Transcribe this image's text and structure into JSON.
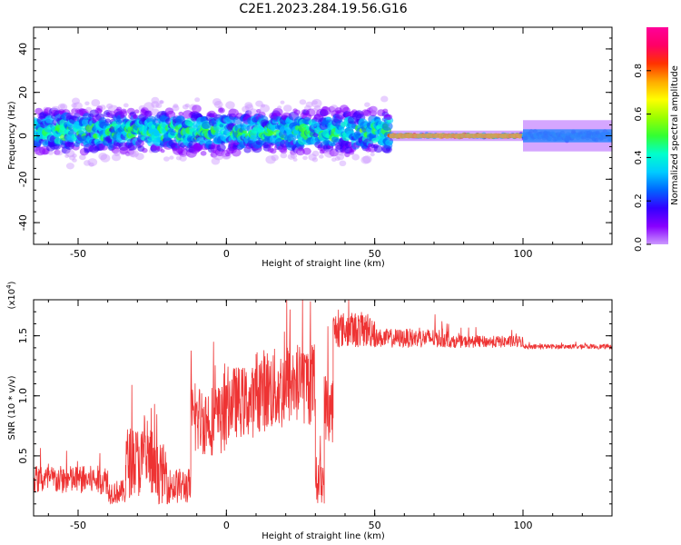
{
  "title": "C2E1.2023.284.19.56.G16",
  "chart_data": [
    {
      "type": "heatmap",
      "xlabel": "Height of straight line (km)",
      "ylabel": "Frequency (Hz)",
      "xlim": [
        -65,
        130
      ],
      "ylim": [
        -50,
        50
      ],
      "xticks": [
        -50,
        0,
        50,
        100
      ],
      "yticks": [
        -40,
        -20,
        0,
        20,
        40
      ],
      "colorbar": {
        "label": "Normalized spectral amplitude",
        "range": [
          0,
          1
        ],
        "ticks": [
          "0.0",
          "0.2",
          "0.4",
          "0.6",
          "0.8"
        ],
        "colors": [
          "#cc99ff",
          "#8800ff",
          "#3300ff",
          "#0066ff",
          "#00ccff",
          "#00ffcc",
          "#33ff33",
          "#99ff00",
          "#ffff00",
          "#ffaa00",
          "#ff3300",
          "#ff0066",
          "#ff0099"
        ]
      },
      "bands": [
        {
          "x_start": -65,
          "x_end": 55,
          "center_hz": 2,
          "spread_hz": 8,
          "max_amplitude": 0.55
        },
        {
          "x_start": 55,
          "x_end": 100,
          "center_hz": 0,
          "spread_hz": 1,
          "max_amplitude": 0.95
        },
        {
          "x_start": 100,
          "x_end": 130,
          "center_hz": 0,
          "spread_hz": 3,
          "max_amplitude": 0.45
        }
      ]
    },
    {
      "type": "line",
      "xlabel": "Height of straight line (km)",
      "ylabel": "SNR (10 * v/v)",
      "y_multiplier": "(x10",
      "y_multiplier_exp": "4",
      "y_multiplier_close": ")",
      "xlim": [
        -65,
        130
      ],
      "ylim": [
        0,
        1.8
      ],
      "xticks": [
        -50,
        0,
        50,
        100
      ],
      "yticks": [
        "0.5",
        "1.0",
        "1.5"
      ],
      "color": "#ee3333",
      "segments": [
        {
          "x": [
            -65,
            -40
          ],
          "mean": 0.3,
          "noise": 0.12
        },
        {
          "x": [
            -40,
            -34
          ],
          "mean": 0.2,
          "noise": 0.1
        },
        {
          "x": [
            -34,
            -25
          ],
          "mean": 0.45,
          "noise": 0.3
        },
        {
          "x": [
            -25,
            -20
          ],
          "mean": 0.35,
          "noise": 0.25
        },
        {
          "x": [
            -20,
            -12
          ],
          "mean": 0.25,
          "noise": 0.15
        },
        {
          "x": [
            -12,
            0
          ],
          "mean": 0.8,
          "noise": 0.3
        },
        {
          "x": [
            0,
            10
          ],
          "mean": 0.95,
          "noise": 0.3
        },
        {
          "x": [
            10,
            20
          ],
          "mean": 1.05,
          "noise": 0.35
        },
        {
          "x": [
            20,
            30
          ],
          "mean": 1.1,
          "noise": 0.35
        },
        {
          "x": [
            30,
            33
          ],
          "mean": 0.3,
          "noise": 0.2
        },
        {
          "x": [
            33,
            36
          ],
          "mean": 0.9,
          "noise": 0.3
        },
        {
          "x": [
            36,
            50
          ],
          "mean": 1.55,
          "noise": 0.15
        },
        {
          "x": [
            50,
            75
          ],
          "mean": 1.48,
          "noise": 0.08
        },
        {
          "x": [
            75,
            100
          ],
          "mean": 1.45,
          "noise": 0.05
        },
        {
          "x": [
            100,
            130
          ],
          "mean": 1.41,
          "noise": 0.02
        }
      ]
    }
  ]
}
